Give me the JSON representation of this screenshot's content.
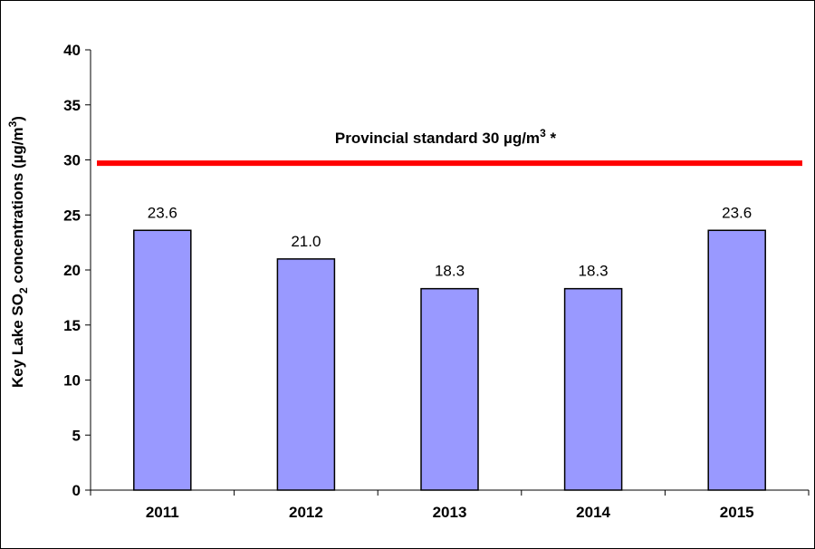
{
  "chart_data": {
    "type": "bar",
    "categories": [
      "2011",
      "2012",
      "2013",
      "2014",
      "2015"
    ],
    "values": [
      23.6,
      21.0,
      18.3,
      18.3,
      23.6
    ],
    "data_labels": [
      "23.6",
      "21.0",
      "18.3",
      "18.3",
      "23.6"
    ],
    "ylim": [
      0,
      40
    ],
    "y_ticks": [
      "0",
      "5",
      "10",
      "15",
      "20",
      "25",
      "30",
      "35",
      "40"
    ],
    "y_tick_values": [
      0,
      5,
      10,
      15,
      20,
      25,
      30,
      35,
      40
    ],
    "ylabel": {
      "pre": "Key Lake SO",
      "sub": "2",
      "mid": " concentrations (µg/m",
      "sup": "3",
      "post": ")"
    },
    "xlabel": "",
    "title": "",
    "grid": false,
    "legend": "none",
    "bar_color": "#9999FF",
    "reference_line": {
      "value": 29.7,
      "color": "#FF0000",
      "label": {
        "pre": "Provincial standard 30 µg/m",
        "sup": "3",
        "post": " *"
      }
    }
  }
}
